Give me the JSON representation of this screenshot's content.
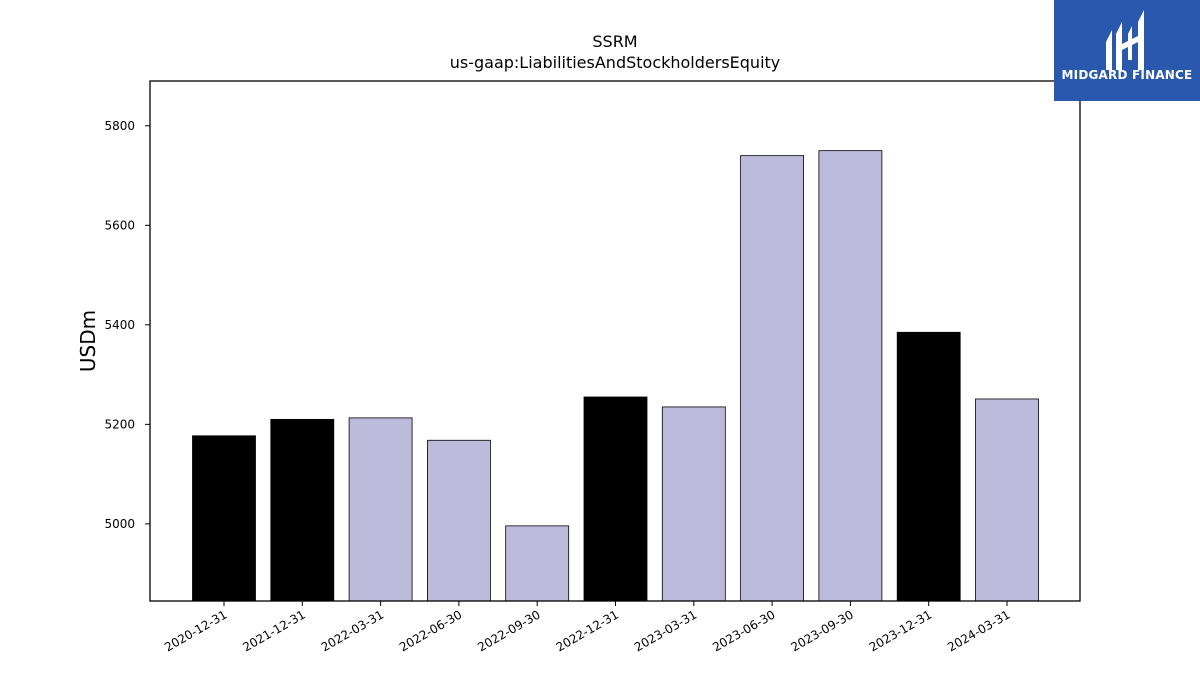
{
  "chart_data": {
    "type": "bar",
    "title": "SSRM",
    "subtitle": "us-gaap:LiabilitiesAndStockholdersEquity",
    "ylabel": "USDm",
    "xlabel": "",
    "ylim": [
      4845,
      5890
    ],
    "yticks": [
      5000,
      5200,
      5400,
      5600,
      5800
    ],
    "categories": [
      "2020-12-31",
      "2021-12-31",
      "2022-03-31",
      "2022-06-30",
      "2022-09-30",
      "2022-12-31",
      "2023-03-31",
      "2023-06-30",
      "2023-09-30",
      "2023-12-31",
      "2024-03-31"
    ],
    "values": [
      5177,
      5210,
      5213,
      5168,
      4996,
      5255,
      5235,
      5740,
      5750,
      5385,
      5251
    ],
    "annual": [
      true,
      true,
      false,
      false,
      false,
      true,
      false,
      false,
      false,
      true,
      false
    ],
    "colors": {
      "annual": "#000000",
      "quarterly": "#bdbbdb",
      "edge": "#000000"
    }
  },
  "logo": {
    "text": "MIDGARD FINANCE",
    "background": "#2a58ad"
  }
}
